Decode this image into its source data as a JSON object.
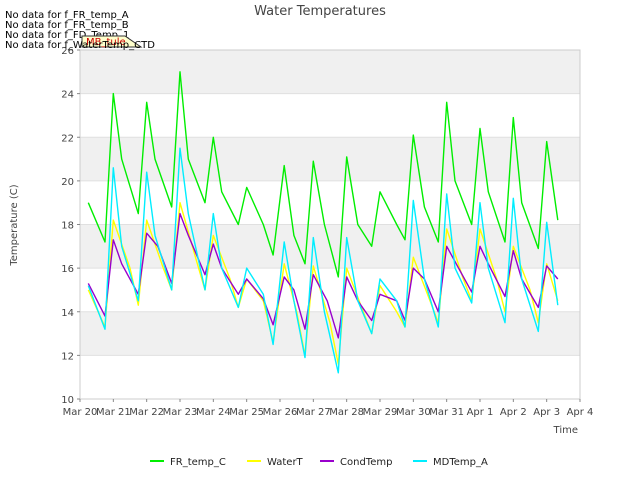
{
  "no_data_messages": [
    "No data for f_FR_temp_A",
    "No data for f_FR_temp_B",
    "No data for f_FD_Temp_1",
    "No data for f_WaterTemp_CTD"
  ],
  "tooltip_text": "MB_tule",
  "chart_data": {
    "type": "line",
    "title": "Water Temperatures",
    "xlabel": "Time",
    "ylabel": "Temperature (C)",
    "ylim": [
      10,
      26
    ],
    "yticks": [
      "10",
      "12",
      "14",
      "16",
      "18",
      "20",
      "22",
      "24",
      "26"
    ],
    "xlim": [
      "2023-03-20",
      "2023-04-04"
    ],
    "xticks": [
      "Mar 20",
      "Mar 21",
      "Mar 22",
      "Mar 23",
      "Mar 24",
      "Mar 25",
      "Mar 26",
      "Mar 27",
      "Mar 28",
      "Mar 29",
      "Mar 30",
      "Mar 31",
      "Apr 1",
      "Apr 2",
      "Apr 3",
      "Apr 4"
    ],
    "grid": "horizontal bands",
    "legend_position": "bottom",
    "series": [
      {
        "name": "FR_temp_C",
        "color": "#00ee00",
        "x": [
          "2023-03-20 06:00",
          "2023-03-20 18:00",
          "2023-03-21 00:00",
          "2023-03-21 06:00",
          "2023-03-21 18:00",
          "2023-03-22 00:00",
          "2023-03-22 06:00",
          "2023-03-22 18:00",
          "2023-03-23 00:00",
          "2023-03-23 06:00",
          "2023-03-23 18:00",
          "2023-03-24 00:00",
          "2023-03-24 06:00",
          "2023-03-24 18:00",
          "2023-03-25 00:00",
          "2023-03-25 12:00",
          "2023-03-25 19:00",
          "2023-03-26 03:00",
          "2023-03-26 10:00",
          "2023-03-26 18:00",
          "2023-03-27 00:00",
          "2023-03-27 08:00",
          "2023-03-27 18:00",
          "2023-03-28 00:00",
          "2023-03-28 08:00",
          "2023-03-28 18:00",
          "2023-03-29 00:00",
          "2023-03-29 12:00",
          "2023-03-29 18:00",
          "2023-03-30 00:00",
          "2023-03-30 08:00",
          "2023-03-30 18:00",
          "2023-03-31 00:00",
          "2023-03-31 06:00",
          "2023-03-31 18:00",
          "2023-04-01 00:00",
          "2023-04-01 06:00",
          "2023-04-01 18:00",
          "2023-04-02 00:00",
          "2023-04-02 06:00",
          "2023-04-02 18:00",
          "2023-04-03 00:00",
          "2023-04-03 08:00"
        ],
        "values": [
          19.0,
          17.2,
          24.0,
          21.0,
          18.5,
          23.6,
          21.0,
          18.8,
          25.0,
          21.0,
          19.0,
          22.0,
          19.5,
          18.0,
          19.7,
          18.0,
          16.6,
          20.7,
          17.5,
          16.2,
          20.9,
          18.0,
          15.6,
          21.1,
          18.0,
          17.0,
          19.5,
          18.0,
          17.3,
          22.1,
          18.8,
          17.2,
          23.6,
          20.0,
          18.0,
          22.4,
          19.5,
          17.2,
          22.9,
          19.0,
          16.9,
          21.8,
          18.2
        ]
      },
      {
        "name": "WaterT",
        "color": "#ffff00",
        "x": [
          "2023-03-20 06:00",
          "2023-03-20 18:00",
          "2023-03-21 00:00",
          "2023-03-21 12:00",
          "2023-03-21 18:00",
          "2023-03-22 00:00",
          "2023-03-22 12:00",
          "2023-03-22 18:00",
          "2023-03-23 00:00",
          "2023-03-23 12:00",
          "2023-03-23 18:00",
          "2023-03-24 00:00",
          "2023-03-24 12:00",
          "2023-03-24 18:00",
          "2023-03-25 00:00",
          "2023-03-25 12:00",
          "2023-03-25 19:00",
          "2023-03-26 03:00",
          "2023-03-26 12:00",
          "2023-03-26 18:00",
          "2023-03-27 00:00",
          "2023-03-27 12:00",
          "2023-03-27 18:00",
          "2023-03-28 00:00",
          "2023-03-28 12:00",
          "2023-03-28 18:00",
          "2023-03-29 00:00",
          "2023-03-29 12:00",
          "2023-03-29 18:00",
          "2023-03-30 00:00",
          "2023-03-30 12:00",
          "2023-03-30 18:00",
          "2023-03-31 00:00",
          "2023-03-31 12:00",
          "2023-03-31 18:00",
          "2023-04-01 00:00",
          "2023-04-01 12:00",
          "2023-04-01 18:00",
          "2023-04-02 00:00",
          "2023-04-02 12:00",
          "2023-04-02 18:00",
          "2023-04-03 00:00",
          "2023-04-03 08:00"
        ],
        "values": [
          15.0,
          13.3,
          18.2,
          16.0,
          14.3,
          18.2,
          16.0,
          15.0,
          19.0,
          16.3,
          15.0,
          17.5,
          15.5,
          14.2,
          15.5,
          14.5,
          12.6,
          16.2,
          14.0,
          12.0,
          16.1,
          13.5,
          11.6,
          16.0,
          14.0,
          13.0,
          15.2,
          14.0,
          13.3,
          16.5,
          14.5,
          13.5,
          17.8,
          15.5,
          14.5,
          17.8,
          15.5,
          14.0,
          17.0,
          15.0,
          13.5,
          16.2,
          14.5
        ]
      },
      {
        "name": "CondTemp",
        "color": "#9900cc",
        "x": [
          "2023-03-20 06:00",
          "2023-03-20 18:00",
          "2023-03-21 00:00",
          "2023-03-21 06:00",
          "2023-03-21 18:00",
          "2023-03-22 00:00",
          "2023-03-22 08:00",
          "2023-03-22 18:00",
          "2023-03-23 00:00",
          "2023-03-23 06:00",
          "2023-03-23 18:00",
          "2023-03-24 00:00",
          "2023-03-24 06:00",
          "2023-03-24 18:00",
          "2023-03-25 00:00",
          "2023-03-25 12:00",
          "2023-03-25 19:00",
          "2023-03-26 03:00",
          "2023-03-26 10:00",
          "2023-03-26 18:00",
          "2023-03-27 00:00",
          "2023-03-27 10:00",
          "2023-03-27 18:00",
          "2023-03-28 00:00",
          "2023-03-28 08:00",
          "2023-03-28 18:00",
          "2023-03-29 00:00",
          "2023-03-29 12:00",
          "2023-03-29 18:00",
          "2023-03-30 00:00",
          "2023-03-30 08:00",
          "2023-03-30 18:00",
          "2023-03-31 00:00",
          "2023-03-31 06:00",
          "2023-03-31 18:00",
          "2023-04-01 00:00",
          "2023-04-01 06:00",
          "2023-04-01 18:00",
          "2023-04-02 00:00",
          "2023-04-02 06:00",
          "2023-04-02 18:00",
          "2023-04-03 00:00",
          "2023-04-03 08:00"
        ],
        "values": [
          15.3,
          13.8,
          17.3,
          16.2,
          14.8,
          17.6,
          17.0,
          15.3,
          18.5,
          17.5,
          15.7,
          17.1,
          16.0,
          14.8,
          15.5,
          14.6,
          13.4,
          15.6,
          15.0,
          13.2,
          15.7,
          14.5,
          12.8,
          15.6,
          14.5,
          13.6,
          14.8,
          14.5,
          13.6,
          16.0,
          15.5,
          14.0,
          17.0,
          16.3,
          14.9,
          17.0,
          16.2,
          14.7,
          16.8,
          15.5,
          14.2,
          16.1,
          15.5
        ]
      },
      {
        "name": "MDTemp_A",
        "color": "#00eeff",
        "x": [
          "2023-03-20 06:00",
          "2023-03-20 18:00",
          "2023-03-21 00:00",
          "2023-03-21 06:00",
          "2023-03-21 18:00",
          "2023-03-22 00:00",
          "2023-03-22 06:00",
          "2023-03-22 18:00",
          "2023-03-23 00:00",
          "2023-03-23 06:00",
          "2023-03-23 18:00",
          "2023-03-24 00:00",
          "2023-03-24 06:00",
          "2023-03-24 18:00",
          "2023-03-25 00:00",
          "2023-03-25 12:00",
          "2023-03-25 19:00",
          "2023-03-26 03:00",
          "2023-03-26 10:00",
          "2023-03-26 18:00",
          "2023-03-27 00:00",
          "2023-03-27 08:00",
          "2023-03-27 18:00",
          "2023-03-28 00:00",
          "2023-03-28 08:00",
          "2023-03-28 18:00",
          "2023-03-29 00:00",
          "2023-03-29 12:00",
          "2023-03-29 18:00",
          "2023-03-30 00:00",
          "2023-03-30 08:00",
          "2023-03-30 18:00",
          "2023-03-31 00:00",
          "2023-03-31 06:00",
          "2023-03-31 18:00",
          "2023-04-01 00:00",
          "2023-04-01 06:00",
          "2023-04-01 18:00",
          "2023-04-02 00:00",
          "2023-04-02 06:00",
          "2023-04-02 18:00",
          "2023-04-03 00:00",
          "2023-04-03 08:00"
        ],
        "values": [
          15.2,
          13.2,
          20.6,
          17.0,
          14.5,
          20.4,
          17.5,
          15.0,
          21.5,
          18.5,
          15.0,
          18.5,
          16.0,
          14.2,
          16.0,
          14.8,
          12.5,
          17.2,
          14.5,
          11.9,
          17.4,
          14.0,
          11.2,
          17.4,
          14.5,
          13.0,
          15.5,
          14.5,
          13.3,
          19.1,
          15.5,
          13.3,
          19.4,
          16.0,
          14.4,
          19.0,
          16.0,
          13.5,
          19.2,
          15.5,
          13.1,
          18.1,
          14.3
        ]
      }
    ]
  }
}
